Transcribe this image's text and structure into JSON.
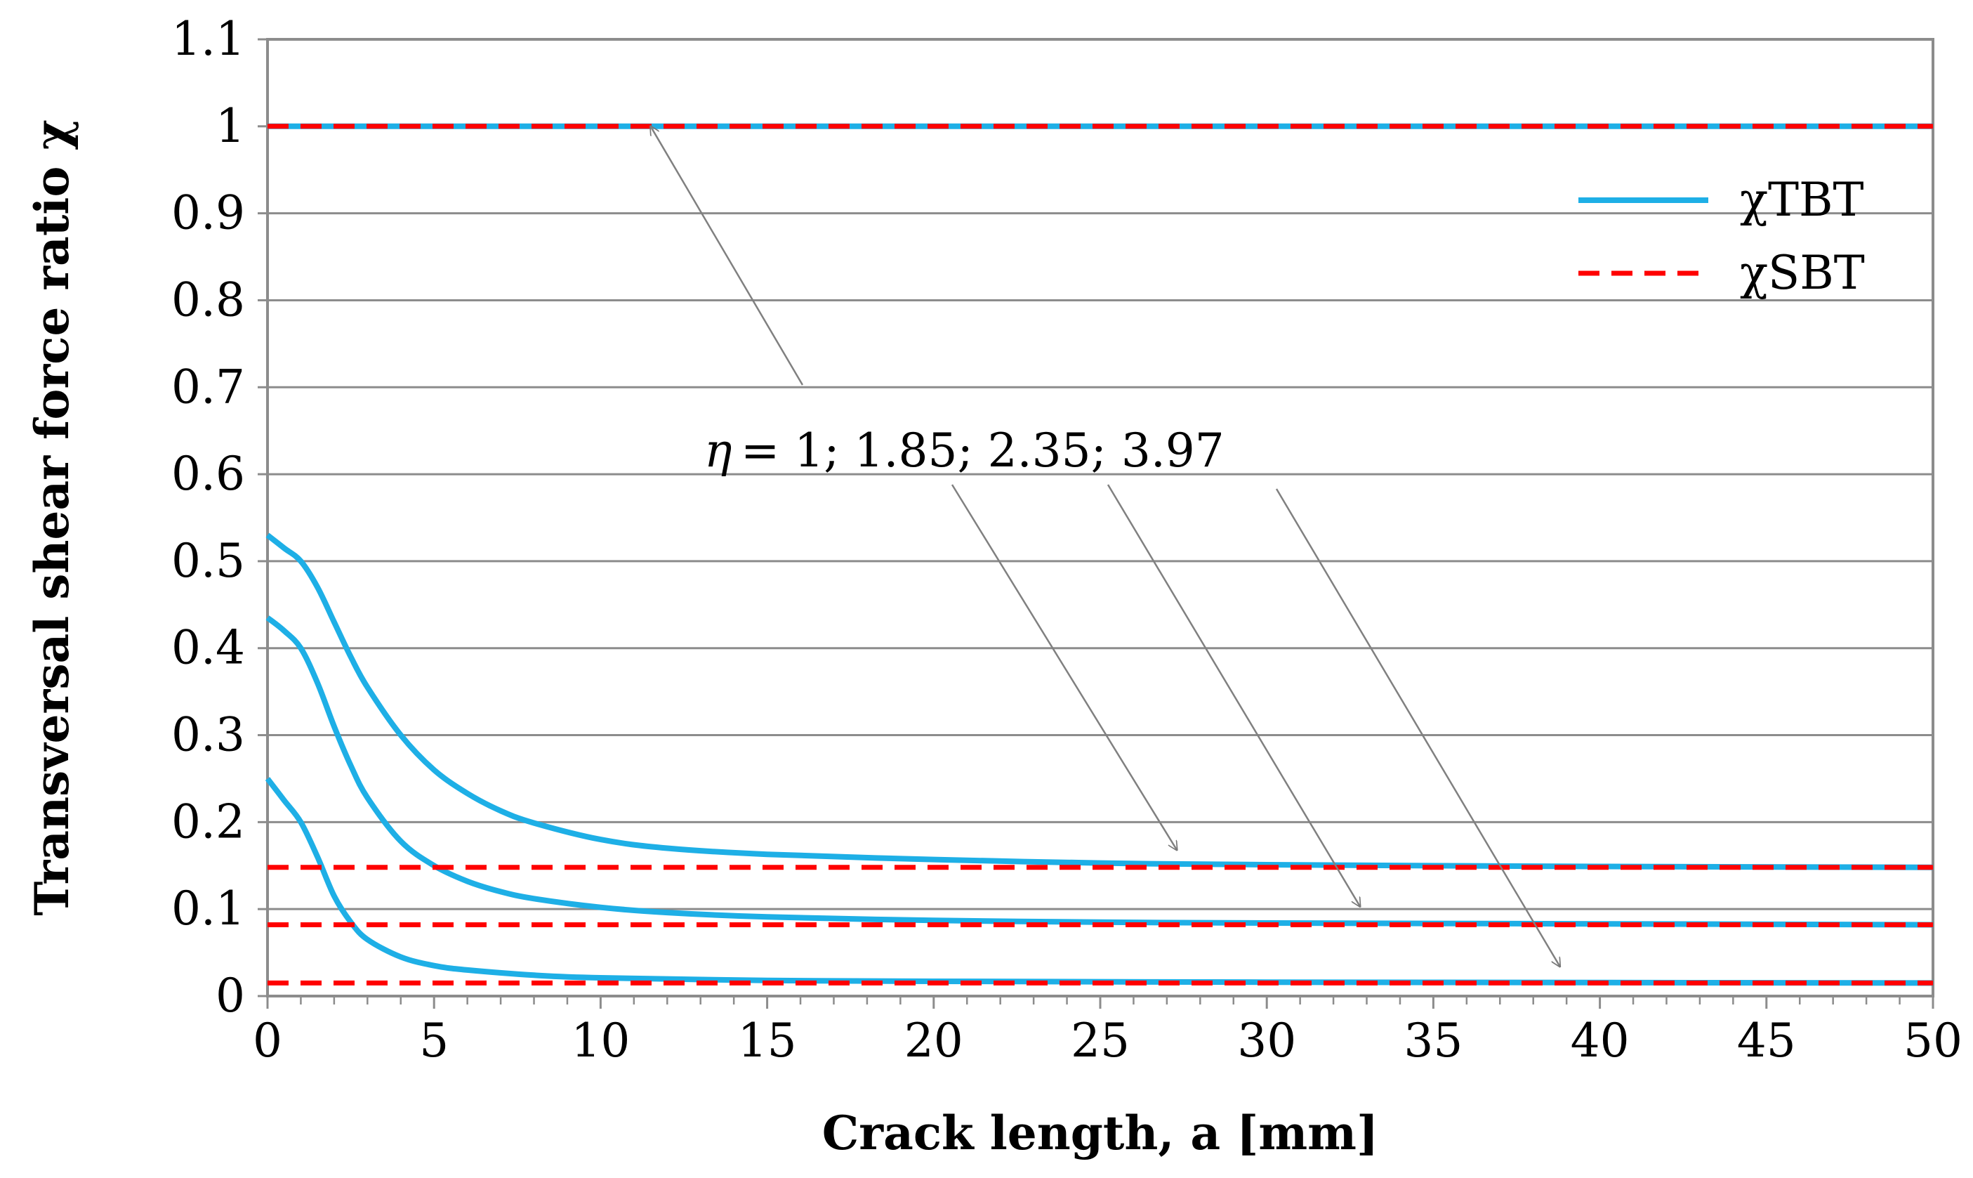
{
  "chart_data": {
    "type": "line",
    "title": "",
    "xlabel": "Crack length, a [mm]",
    "ylabel": "Transversal shear force ratio χ",
    "xlim": [
      0,
      50
    ],
    "ylim": [
      0,
      1.1
    ],
    "xticks": [
      0,
      5,
      10,
      15,
      20,
      25,
      30,
      35,
      40,
      45,
      50
    ],
    "xtick_labels": [
      "0",
      "5",
      "10",
      "15",
      "20",
      "25",
      "30",
      "35",
      "40",
      "45",
      "50"
    ],
    "yticks": [
      0,
      0.1,
      0.2,
      0.3,
      0.4,
      0.5,
      0.6,
      0.7,
      0.8,
      0.9,
      1.0,
      1.1
    ],
    "ytick_labels": [
      "0",
      "0.1",
      "0.2",
      "0.3",
      "0.4",
      "0.5",
      "0.6",
      "0.7",
      "0.8",
      "0.9",
      "1",
      "1.1"
    ],
    "legend": {
      "position": "top-right",
      "entries": [
        {
          "label": "χTBT",
          "color": "#1EAFE6",
          "style": "solid"
        },
        {
          "label": "χSBT",
          "color": "#FF0000",
          "style": "dashed"
        }
      ]
    },
    "series": [
      {
        "name": "χTBT η=1",
        "color": "#1EAFE6",
        "style": "solid",
        "x": [
          0,
          50
        ],
        "y": [
          1.0,
          1.0
        ]
      },
      {
        "name": "χTBT η=1.85",
        "color": "#1EAFE6",
        "style": "solid",
        "x": [
          0,
          0.5,
          1,
          1.5,
          2,
          2.5,
          3,
          4,
          5,
          6,
          7,
          8,
          10,
          12,
          15,
          20,
          25,
          30,
          40,
          50
        ],
        "y": [
          0.53,
          0.515,
          0.5,
          0.47,
          0.43,
          0.39,
          0.355,
          0.3,
          0.26,
          0.233,
          0.213,
          0.199,
          0.18,
          0.17,
          0.163,
          0.157,
          0.153,
          0.151,
          0.149,
          0.148
        ]
      },
      {
        "name": "χTBT η=2.35",
        "color": "#1EAFE6",
        "style": "solid",
        "x": [
          0,
          0.5,
          1,
          1.5,
          2,
          2.5,
          3,
          4,
          5,
          6,
          7,
          8,
          10,
          12,
          15,
          20,
          25,
          30,
          40,
          50
        ],
        "y": [
          0.435,
          0.42,
          0.4,
          0.36,
          0.31,
          0.265,
          0.228,
          0.178,
          0.15,
          0.132,
          0.12,
          0.112,
          0.102,
          0.096,
          0.091,
          0.087,
          0.085,
          0.084,
          0.083,
          0.082
        ]
      },
      {
        "name": "χTBT η=3.97",
        "color": "#1EAFE6",
        "style": "solid",
        "x": [
          0,
          0.5,
          1,
          1.5,
          2,
          2.5,
          3,
          4,
          5,
          6,
          8,
          10,
          15,
          20,
          30,
          40,
          50
        ],
        "y": [
          0.25,
          0.225,
          0.2,
          0.16,
          0.115,
          0.085,
          0.065,
          0.045,
          0.035,
          0.03,
          0.024,
          0.021,
          0.018,
          0.017,
          0.016,
          0.0155,
          0.015
        ]
      },
      {
        "name": "χSBT η=1",
        "color": "#FF0000",
        "style": "dashed",
        "x": [
          0,
          50
        ],
        "y": [
          1.0,
          1.0
        ]
      },
      {
        "name": "χSBT η=1.85",
        "color": "#FF0000",
        "style": "dashed",
        "x": [
          0,
          50
        ],
        "y": [
          0.148,
          0.148
        ]
      },
      {
        "name": "χSBT η=2.35",
        "color": "#FF0000",
        "style": "dashed",
        "x": [
          0,
          50
        ],
        "y": [
          0.082,
          0.082
        ]
      },
      {
        "name": "χSBT η=3.97",
        "color": "#FF0000",
        "style": "dashed",
        "x": [
          0,
          50
        ],
        "y": [
          0.015,
          0.015
        ]
      }
    ],
    "annotation": {
      "prefix": "η",
      "text": "= 1;  1.85;  2.35;  3.97",
      "arrow_targets": [
        {
          "x": 11.5,
          "y": 1.0
        },
        {
          "x": 27.3,
          "y": 0.168
        },
        {
          "x": 32.8,
          "y": 0.103
        },
        {
          "x": 38.8,
          "y": 0.034
        }
      ]
    }
  }
}
